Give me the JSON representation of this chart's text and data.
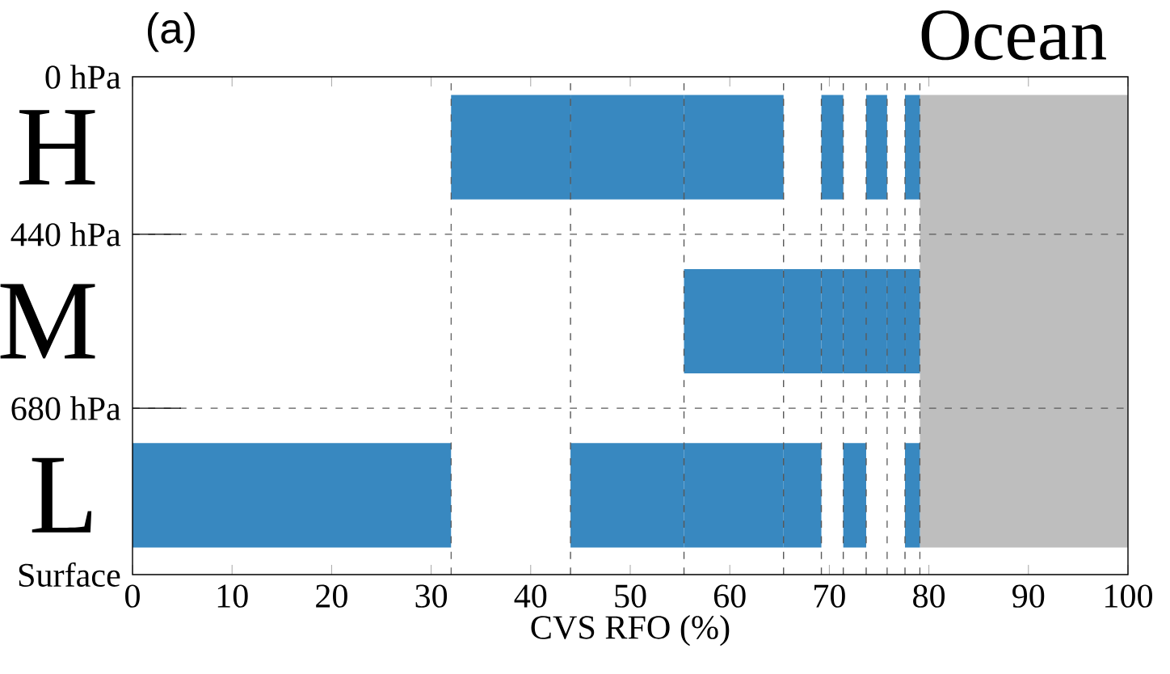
{
  "chart_data": {
    "type": "bar",
    "orientation": "horizontal",
    "title": "Ocean",
    "xlabel": "CVS RFO (%)",
    "categories": [
      "H",
      "M",
      "L"
    ],
    "series": [
      {
        "color": "#3888c0",
        "base": [
          null,
          null,
          0
        ],
        "values": [
          null,
          null,
          32.0
        ]
      },
      {
        "color": "#3888c0",
        "base": [
          32.0,
          null,
          null
        ],
        "values": [
          12.0,
          null,
          null
        ]
      },
      {
        "color": "#3888c0",
        "base": [
          44.0,
          null,
          44.0
        ],
        "values": [
          11.4,
          null,
          11.4
        ]
      },
      {
        "color": "#3888c0",
        "base": [
          55.4,
          55.4,
          55.4
        ],
        "values": [
          10.0,
          10.0,
          10.0
        ]
      },
      {
        "color": "#3888c0",
        "base": [
          null,
          65.4,
          65.4
        ],
        "values": [
          null,
          3.8,
          3.8
        ]
      },
      {
        "color": "#3888c0",
        "base": [
          69.2,
          69.2,
          null
        ],
        "values": [
          2.2,
          2.2,
          null
        ]
      },
      {
        "color": "#3888c0",
        "base": [
          null,
          71.4,
          71.4
        ],
        "values": [
          null,
          2.3,
          2.3
        ]
      },
      {
        "color": "#3888c0",
        "base": [
          73.7,
          73.7,
          null
        ],
        "values": [
          2.1,
          2.1,
          null
        ]
      },
      {
        "color": "#3888c0",
        "base": [
          null,
          75.8,
          null
        ],
        "values": [
          null,
          1.8,
          null
        ]
      },
      {
        "color": "#3888c0",
        "base": [
          77.6,
          77.6,
          77.6
        ],
        "values": [
          1.5,
          1.5,
          1.5
        ]
      }
    ],
    "xlim": [
      0,
      100
    ],
    "xticks": [
      0,
      10,
      20,
      30,
      40,
      50,
      60,
      70,
      80,
      90,
      100
    ],
    "bands": [
      {
        "axis": "x",
        "from": 79.1,
        "to": 100,
        "color": "#bebebe"
      }
    ],
    "ref_lines": [
      {
        "axis": "x",
        "value": 32.0,
        "line_style": "dashed"
      },
      {
        "axis": "x",
        "value": 44.0,
        "line_style": "dashed"
      },
      {
        "axis": "x",
        "value": 55.4,
        "line_style": "dashed"
      },
      {
        "axis": "x",
        "value": 65.4,
        "line_style": "dashed"
      },
      {
        "axis": "x",
        "value": 69.2,
        "line_style": "dashed"
      },
      {
        "axis": "x",
        "value": 71.4,
        "line_style": "dashed"
      },
      {
        "axis": "x",
        "value": 73.7,
        "line_style": "dashed"
      },
      {
        "axis": "x",
        "value": 75.8,
        "line_style": "dashed"
      },
      {
        "axis": "x",
        "value": 77.6,
        "line_style": "dashed"
      },
      {
        "axis": "x",
        "value": 79.1,
        "line_style": "dashed"
      }
    ],
    "annotations": [
      "(a)",
      "0 hPa",
      "440 hPa",
      "680 hPa",
      "Surface"
    ]
  }
}
